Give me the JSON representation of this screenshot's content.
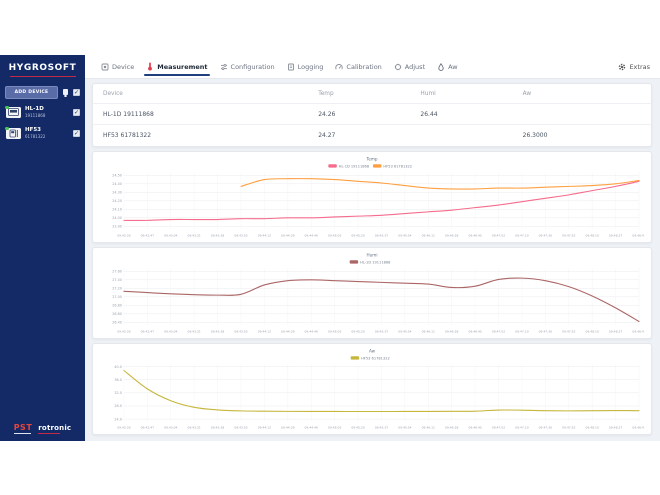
{
  "icons": {
    "check": "✓"
  },
  "sidebar": {
    "brand": "HYGROSOFT",
    "add_device_label": "ADD DEVICE",
    "devices": [
      {
        "name": "HL-1D",
        "id": "19111868"
      },
      {
        "name": "HF53",
        "id": "61781322"
      }
    ],
    "footer": {
      "pst": "PST",
      "rotronic": "rotronic"
    }
  },
  "tabs": [
    {
      "label": "Device"
    },
    {
      "label": "Measurement"
    },
    {
      "label": "Configuration"
    },
    {
      "label": "Logging"
    },
    {
      "label": "Calibration"
    },
    {
      "label": "Adjust"
    },
    {
      "label": "Aw"
    }
  ],
  "extras_label": "Extras",
  "table": {
    "columns": [
      "Device",
      "Temp",
      "Humi",
      "Aw"
    ],
    "rows": [
      {
        "device": "HL-1D 19111868",
        "temp": "24.26",
        "humi": "26.44",
        "aw": ""
      },
      {
        "device": "HF53 61781322",
        "temp": "24.27",
        "humi": "",
        "aw": "26.3000"
      }
    ]
  },
  "colors": {
    "accent_navy": "#1f3f7e",
    "brand_red": "#c22a49",
    "series_pink": "#f56c8d",
    "series_orange": "#ff9f40",
    "series_maroon": "#ab6666",
    "series_olive": "#c5b63c"
  },
  "chart_data": [
    {
      "type": "line",
      "title": "Temp",
      "x": [
        "09:42:30",
        "09:42:47",
        "09:43:04",
        "09:43:21",
        "09:43:38",
        "09:43:55",
        "09:44:12",
        "09:44:29",
        "09:44:46",
        "09:45:03",
        "09:45:20",
        "09:45:37",
        "09:45:54",
        "09:46:11",
        "09:46:28",
        "09:46:45",
        "09:47:02",
        "09:47:19",
        "09:47:36",
        "09:47:53",
        "09:48:10",
        "09:48:27",
        "09:48:44"
      ],
      "y_ticks": [
        "24.50",
        "24.40",
        "24.30",
        "24.20",
        "24.10",
        "24.00",
        "23.90"
      ],
      "ylim": [
        23.86,
        24.54
      ],
      "grid": true,
      "legend_position": "top",
      "series": [
        {
          "name": "HL-1D 19111868",
          "color": "#f56c8d",
          "values": [
            23.97,
            23.97,
            23.98,
            23.98,
            23.98,
            23.99,
            23.99,
            24.0,
            24.0,
            24.01,
            24.02,
            24.03,
            24.05,
            24.07,
            24.09,
            24.12,
            24.15,
            24.19,
            24.23,
            24.27,
            24.32,
            24.37,
            24.43
          ]
        },
        {
          "name": "HF53 61781322",
          "color": "#ff9f40",
          "values": [
            null,
            null,
            null,
            null,
            null,
            24.37,
            24.45,
            24.46,
            24.46,
            24.45,
            24.43,
            24.41,
            24.38,
            24.35,
            24.34,
            24.34,
            24.35,
            24.35,
            24.36,
            24.37,
            24.38,
            24.4,
            24.44
          ]
        }
      ]
    },
    {
      "type": "line",
      "title": "Humi",
      "x": [
        "09:42:30",
        "09:42:47",
        "09:43:04",
        "09:43:21",
        "09:43:38",
        "09:43:55",
        "09:44:12",
        "09:44:29",
        "09:44:46",
        "09:45:03",
        "09:45:20",
        "09:45:37",
        "09:45:54",
        "09:46:11",
        "09:46:28",
        "09:46:45",
        "09:47:02",
        "09:47:19",
        "09:47:36",
        "09:47:53",
        "09:48:10",
        "09:48:27",
        "09:48:44"
      ],
      "y_ticks": [
        "27.60",
        "27.40",
        "27.20",
        "27.00",
        "26.80",
        "26.60",
        "26.40"
      ],
      "ylim": [
        26.32,
        27.68
      ],
      "grid": true,
      "legend_position": "top",
      "series": [
        {
          "name": "HL-1D 19111868",
          "color": "#ab6666",
          "values": [
            27.13,
            27.1,
            27.07,
            27.05,
            27.04,
            27.06,
            27.28,
            27.38,
            27.4,
            27.38,
            27.36,
            27.34,
            27.32,
            27.3,
            27.22,
            27.25,
            27.41,
            27.44,
            27.38,
            27.24,
            27.02,
            26.74,
            26.42
          ]
        }
      ]
    },
    {
      "type": "line",
      "title": "Aw",
      "x": [
        "09:42:30",
        "09:42:47",
        "09:43:04",
        "09:43:21",
        "09:43:38",
        "09:43:55",
        "09:44:12",
        "09:44:29",
        "09:44:46",
        "09:45:03",
        "09:45:20",
        "09:45:37",
        "09:45:54",
        "09:46:11",
        "09:46:28",
        "09:46:45",
        "09:47:02",
        "09:47:19",
        "09:47:36",
        "09:47:53",
        "09:48:10",
        "09:48:27",
        "09:48:44"
      ],
      "y_ticks": [
        "40.0",
        "36.0",
        "32.0",
        "28.0",
        "24.0"
      ],
      "ylim": [
        23.2,
        40.8
      ],
      "grid": true,
      "legend_position": "top",
      "series": [
        {
          "name": "HF53 61781322",
          "color": "#c5b63c",
          "values": [
            38.8,
            33.2,
            29.6,
            27.6,
            26.8,
            26.5,
            26.4,
            26.35,
            26.33,
            26.32,
            26.31,
            26.31,
            26.32,
            26.33,
            26.36,
            26.42,
            26.75,
            26.72,
            26.55,
            26.5,
            26.55,
            26.6,
            26.55
          ]
        }
      ]
    }
  ]
}
